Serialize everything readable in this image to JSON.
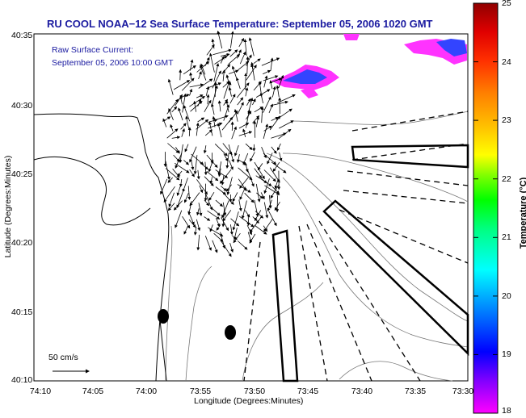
{
  "title": "RU COOL  NOAA−12  Sea Surface Temperature:  September 05, 2006 1020 GMT",
  "overlay": {
    "line1": "Raw Surface Current:",
    "line2": "September 05, 2006 10:00 GMT"
  },
  "axes": {
    "xlabel": "Longitude (Degrees:Minutes)",
    "ylabel": "Latitude (Degrees:Minutes)",
    "xticks": [
      "74:10",
      "74:05",
      "74:00",
      "73:55",
      "73:50",
      "73:45",
      "73:40",
      "73:35",
      "73:30"
    ],
    "yticks": [
      "40:35",
      "40:30",
      "40:25",
      "40:20",
      "40:15",
      "40:10"
    ]
  },
  "colorbar": {
    "label": "Temperature (°C)",
    "ticks": [
      "25",
      "24",
      "23",
      "22",
      "21",
      "20",
      "19",
      "18"
    ],
    "range": [
      18,
      25
    ],
    "colors": [
      "#ff00ff",
      "#8000ff",
      "#0000ff",
      "#0080ff",
      "#00ffff",
      "#00ff80",
      "#00ff00",
      "#80ff00",
      "#ffff00",
      "#ffc000",
      "#ff8000",
      "#ff4000",
      "#ff0000",
      "#c00000",
      "#800000"
    ]
  },
  "scale": {
    "label": "50 cm/s"
  },
  "colors": {
    "title": "#1a1aa0",
    "land": "#000000",
    "contours": "#777777"
  }
}
